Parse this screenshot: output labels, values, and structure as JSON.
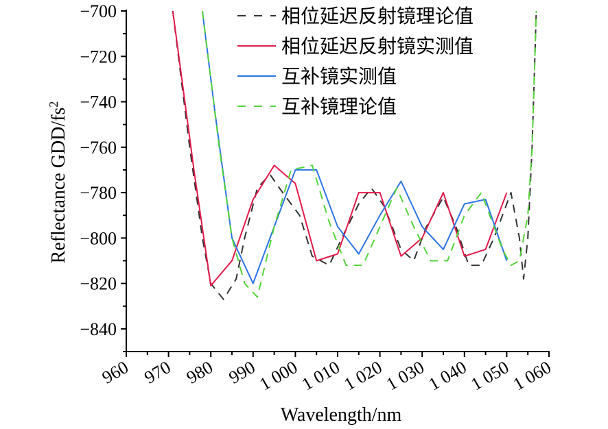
{
  "chart_data": {
    "type": "line",
    "title": "",
    "xlabel": "Wavelength/nm",
    "ylabel": "Reflectance GDD/fs",
    "ylabel_sup": "2",
    "xlim": [
      960,
      1060
    ],
    "ylim": [
      -850,
      -700
    ],
    "x_ticks": [
      960,
      970,
      980,
      990,
      1000,
      1010,
      1020,
      1030,
      1040,
      1050,
      1060
    ],
    "x_tick_labels": [
      "960",
      "970",
      "980",
      "990",
      "1 000",
      "1 010",
      "1 020",
      "1 030",
      "1 040",
      "1 050",
      "1 060"
    ],
    "y_ticks": [
      -700,
      -720,
      -740,
      -760,
      -780,
      -800,
      -820,
      -840
    ],
    "y_tick_labels": [
      "−700",
      "−720",
      "−740",
      "−760",
      "−780",
      "−800",
      "−820",
      "−840"
    ],
    "grid": false,
    "legend_position": "top-right",
    "series": [
      {
        "name": "相位延迟反射镜理论值",
        "color": "#333333",
        "style": "dashed",
        "x": [
          971,
          975,
          978,
          980,
          983,
          986,
          988,
          991,
          994,
          997,
          1001,
          1004,
          1008,
          1011,
          1015,
          1018,
          1021,
          1025,
          1028,
          1031,
          1035,
          1038,
          1041,
          1044,
          1047,
          1049,
          1051,
          1053,
          1054,
          1055,
          1056,
          1057
        ],
        "y": [
          -700,
          -760,
          -800,
          -820,
          -827,
          -818,
          -800,
          -778,
          -772,
          -780,
          -790,
          -808,
          -812,
          -800,
          -785,
          -778,
          -786,
          -805,
          -810,
          -795,
          -782,
          -795,
          -812,
          -812,
          -800,
          -790,
          -780,
          -800,
          -818,
          -800,
          -760,
          -700
        ]
      },
      {
        "name": "相位延迟反射镜实测值",
        "color": "#e31a4a",
        "style": "solid",
        "x": [
          971,
          976,
          980,
          985,
          990,
          995,
          1000,
          1005,
          1010,
          1015,
          1020,
          1025,
          1030,
          1035,
          1040,
          1045,
          1050
        ],
        "y": [
          -700,
          -770,
          -821,
          -810,
          -783,
          -768,
          -776,
          -810,
          -807,
          -780,
          -780,
          -808,
          -800,
          -780,
          -808,
          -805,
          -780
        ]
      },
      {
        "name": "互补镜实测值",
        "color": "#2d73e6",
        "style": "solid",
        "x": [
          978,
          981,
          985,
          990,
          995,
          1000,
          1005,
          1010,
          1015,
          1020,
          1025,
          1030,
          1035,
          1040,
          1045,
          1050
        ],
        "y": [
          -700,
          -745,
          -800,
          -820,
          -795,
          -770,
          -770,
          -795,
          -807,
          -790,
          -775,
          -795,
          -805,
          -785,
          -783,
          -810
        ]
      },
      {
        "name": "互补镜理论值",
        "color": "#55d43a",
        "style": "dashed",
        "x": [
          978,
          982,
          985,
          988,
          991,
          995,
          999,
          1004,
          1008,
          1012,
          1016,
          1020,
          1024,
          1028,
          1032,
          1036,
          1040,
          1044,
          1047,
          1049,
          1051,
          1053,
          1055,
          1056,
          1057
        ],
        "y": [
          -700,
          -760,
          -800,
          -820,
          -826,
          -795,
          -770,
          -768,
          -793,
          -812,
          -812,
          -795,
          -778,
          -795,
          -810,
          -810,
          -790,
          -780,
          -795,
          -805,
          -812,
          -810,
          -790,
          -760,
          -700
        ]
      }
    ]
  }
}
